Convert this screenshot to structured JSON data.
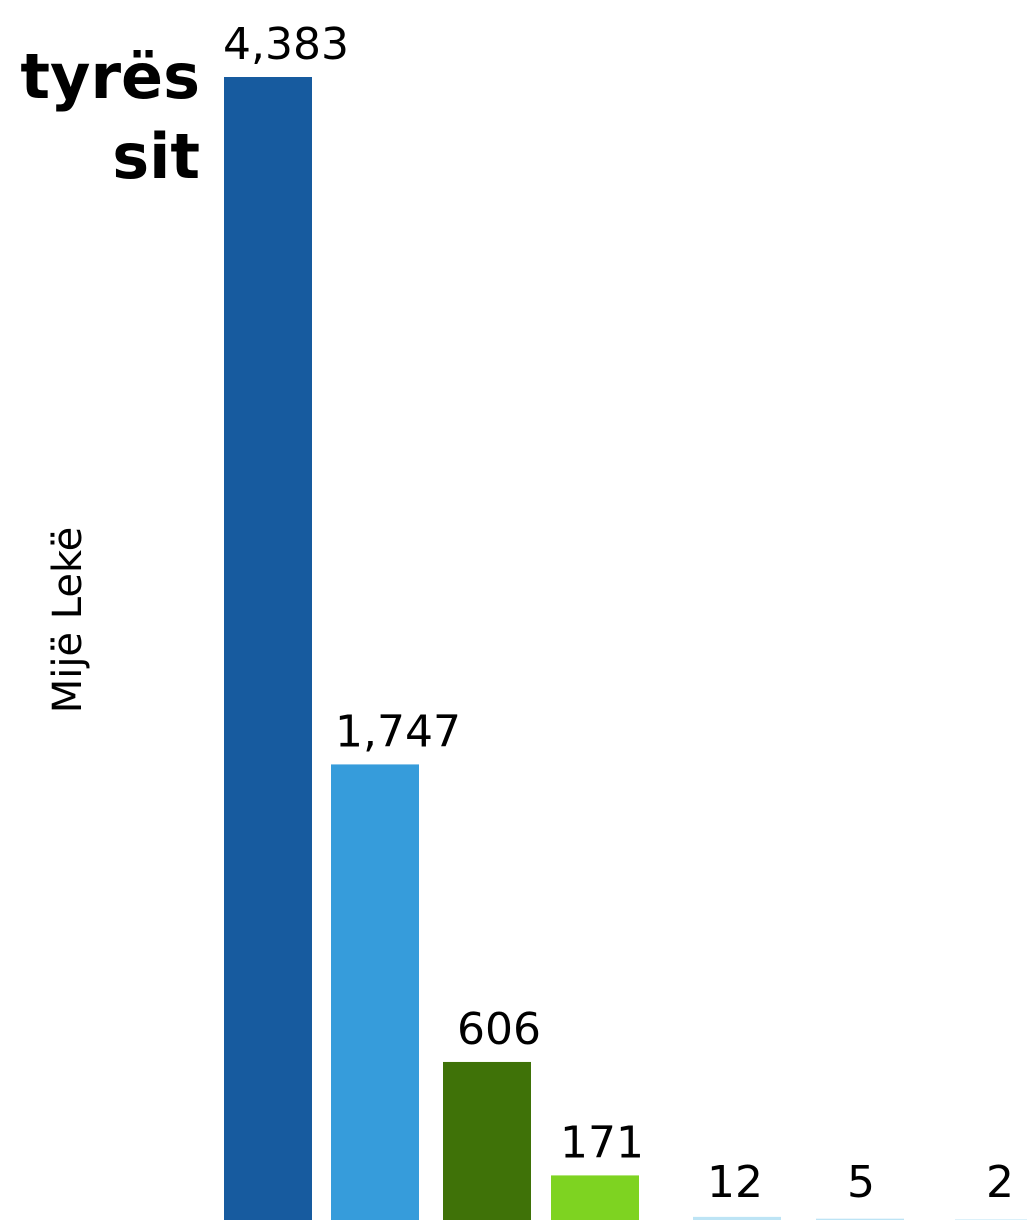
{
  "chart_data": {
    "type": "bar",
    "title_lines": [
      "tyrës",
      "sit"
    ],
    "ylabel": "Mijë Lekë",
    "xlabel": "",
    "categories": [
      "",
      "",
      "",
      "",
      "",
      "",
      ""
    ],
    "values": [
      4383,
      1747,
      606,
      171,
      12,
      5,
      2
    ],
    "value_labels": [
      "4,383",
      "1,747",
      "606",
      "171",
      "12",
      "5",
      "2"
    ],
    "colors": [
      "#175b9f",
      "#369cdb",
      "#3f7208",
      "#7ed321",
      "#bde4f5",
      "#bde4f5",
      "#bde4f5"
    ],
    "ylim": [
      0,
      4383
    ],
    "grid": false
  }
}
